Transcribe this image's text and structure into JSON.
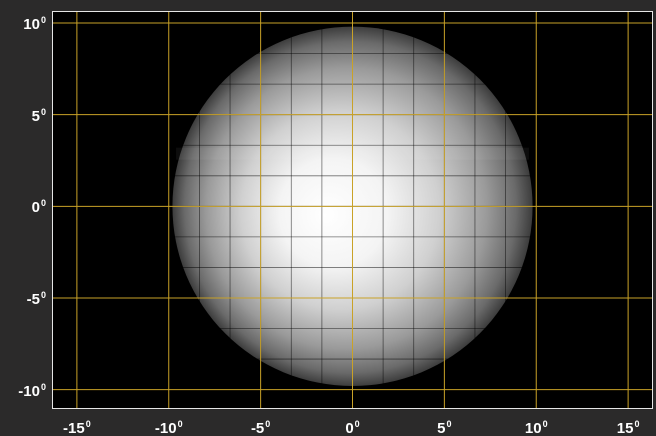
{
  "chart_data": {
    "type": "heatmap",
    "title": "",
    "xlabel": "",
    "ylabel": "",
    "xlim": [
      -16.3,
      16.3
    ],
    "ylim": [
      -11,
      10.6
    ],
    "x_ticks": [
      {
        "value": -15,
        "label": "-15",
        "unit": "0"
      },
      {
        "value": -10,
        "label": "-10",
        "unit": "0"
      },
      {
        "value": -5,
        "label": "-5",
        "unit": "0"
      },
      {
        "value": 0,
        "label": "0",
        "unit": "0"
      },
      {
        "value": 5,
        "label": "5",
        "unit": "0"
      },
      {
        "value": 10,
        "label": "10",
        "unit": "0"
      },
      {
        "value": 15,
        "label": "15",
        "unit": "0"
      }
    ],
    "y_ticks": [
      {
        "value": 10,
        "label": "10",
        "unit": "0"
      },
      {
        "value": 5,
        "label": "5",
        "unit": "0"
      },
      {
        "value": 0,
        "label": "0",
        "unit": "0"
      },
      {
        "value": -5,
        "label": "-5",
        "unit": "0"
      },
      {
        "value": -10,
        "label": "-10",
        "unit": "0"
      }
    ],
    "major_grid_step": 5,
    "minor_grid_step": 1.666,
    "grid": true,
    "spot": {
      "shape": "circle",
      "center_x": 0,
      "center_y": 0,
      "radius": 9.8,
      "peak_x": -1.5,
      "peak_y": -0.5
    },
    "colors": {
      "background": "#2b2a2a",
      "plot_background": "#000000",
      "major_grid": "#c9a227",
      "minor_grid": "#000000",
      "tick_text": "#ffffff",
      "frame": "#e6e6e6"
    }
  }
}
